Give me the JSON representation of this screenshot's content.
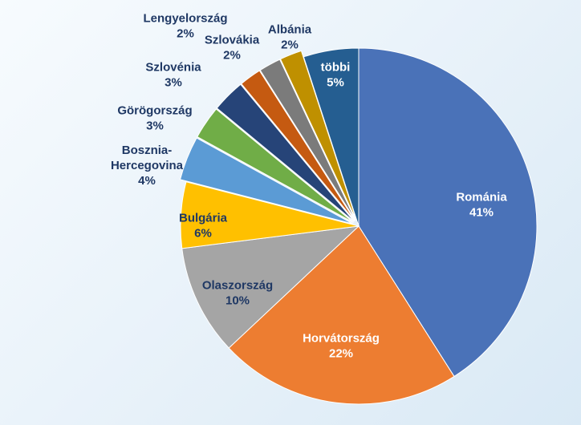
{
  "colors": {
    "background": "#e7f1f9",
    "outside_label": "#1f3864"
  },
  "chart_data": {
    "type": "pie",
    "title": "",
    "legend": "none",
    "slices": [
      {
        "label": "Románia",
        "value": 41,
        "value_label": "41%",
        "color": "#4a72b8",
        "label_color": "#ffffff",
        "label_placement": "inside"
      },
      {
        "label": "Horvátország",
        "value": 22,
        "value_label": "22%",
        "color": "#ed7d31",
        "label_color": "#ffffff",
        "label_placement": "inside"
      },
      {
        "label": "Olaszország",
        "value": 10,
        "value_label": "10%",
        "color": "#a5a5a5",
        "label_color": "#1f3864",
        "label_placement": "inside"
      },
      {
        "label": "Bulgária",
        "value": 6,
        "value_label": "6%",
        "color": "#ffc000",
        "label_color": "#1f3864",
        "label_placement": "inside"
      },
      {
        "label": "Bosznia-\nHercegovina",
        "value": 4,
        "value_label": "4%",
        "color": "#5b9bd5",
        "label_color": "#1f3864",
        "label_placement": "outside"
      },
      {
        "label": "Görögország",
        "value": 3,
        "value_label": "3%",
        "color": "#70ad47",
        "label_color": "#1f3864",
        "label_placement": "outside"
      },
      {
        "label": "Szlovénia",
        "value": 3,
        "value_label": "3%",
        "color": "#264478",
        "label_color": "#1f3864",
        "label_placement": "outside"
      },
      {
        "label": "Lengyelország",
        "value": 2,
        "value_label": "2%",
        "color": "#c55a11",
        "label_color": "#1f3864",
        "label_placement": "outside"
      },
      {
        "label": "Szlovákia",
        "value": 2,
        "value_label": "2%",
        "color": "#7b7b7b",
        "label_color": "#1f3864",
        "label_placement": "outside"
      },
      {
        "label": "Albánia",
        "value": 2,
        "value_label": "2%",
        "color": "#bf9000",
        "label_color": "#1f3864",
        "label_placement": "outside"
      },
      {
        "label": "többi",
        "value": 5,
        "value_label": "5%",
        "color": "#255e91",
        "label_color": "#ffffff",
        "label_placement": "inside"
      }
    ]
  }
}
